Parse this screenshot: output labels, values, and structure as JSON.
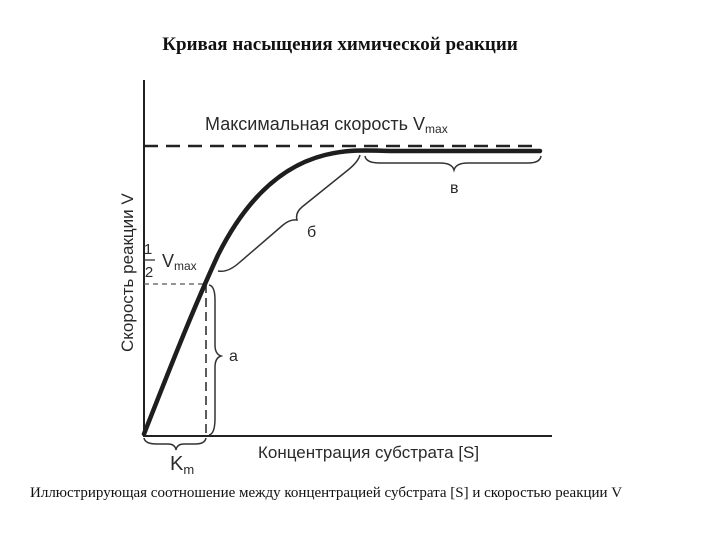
{
  "title": "Кривая насыщения химической реакции",
  "diagram": {
    "vmax_label": "Максимальная скорость V",
    "vmax_sub": "max",
    "y_axis_label": "Скорость реакции V",
    "x_axis_label": "Концентрация субстрата [S]",
    "half_num": "1",
    "half_den": "2",
    "half_v": "V",
    "half_sub": "max",
    "km_label": "K",
    "km_sub": "m",
    "region_a": "а",
    "region_b": "б",
    "region_c": "в"
  },
  "caption": "Иллюстрирующая соотношение между концентрацией субстрата [S] и скоростью реакции V"
}
